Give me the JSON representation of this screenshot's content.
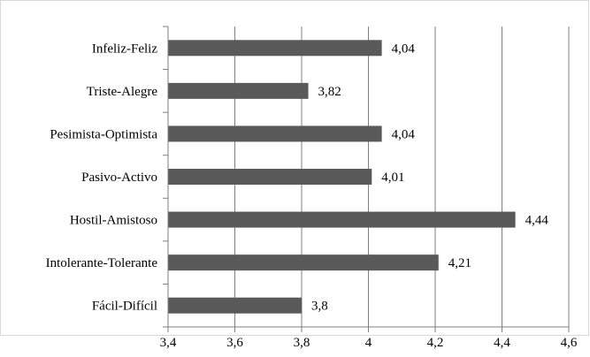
{
  "chart_data": {
    "type": "bar",
    "orientation": "horizontal",
    "categories": [
      "Infeliz-Feliz",
      "Triste-Alegre",
      "Pesimista-Optimista",
      "Pasivo-Activo",
      "Hostil-Amistoso",
      "Intolerante-Tolerante",
      "Fácil-Difícil"
    ],
    "values": [
      4.04,
      3.82,
      4.04,
      4.01,
      4.44,
      4.21,
      3.8
    ],
    "value_labels": [
      "4,04",
      "3,82",
      "4,04",
      "4,01",
      "4,44",
      "4,21",
      "3,8"
    ],
    "x_ticks": [
      3.4,
      3.6,
      3.8,
      4.0,
      4.2,
      4.4,
      4.6
    ],
    "x_tick_labels": [
      "3,4",
      "3,6",
      "3,8",
      "4",
      "4,2",
      "4,4",
      "4,6"
    ],
    "xlim": [
      3.4,
      4.6
    ],
    "title": "",
    "xlabel": "",
    "ylabel": "",
    "grid": "vertical",
    "legend": "none",
    "bar_color": "#595959",
    "grid_color": "#7f7f7f"
  }
}
